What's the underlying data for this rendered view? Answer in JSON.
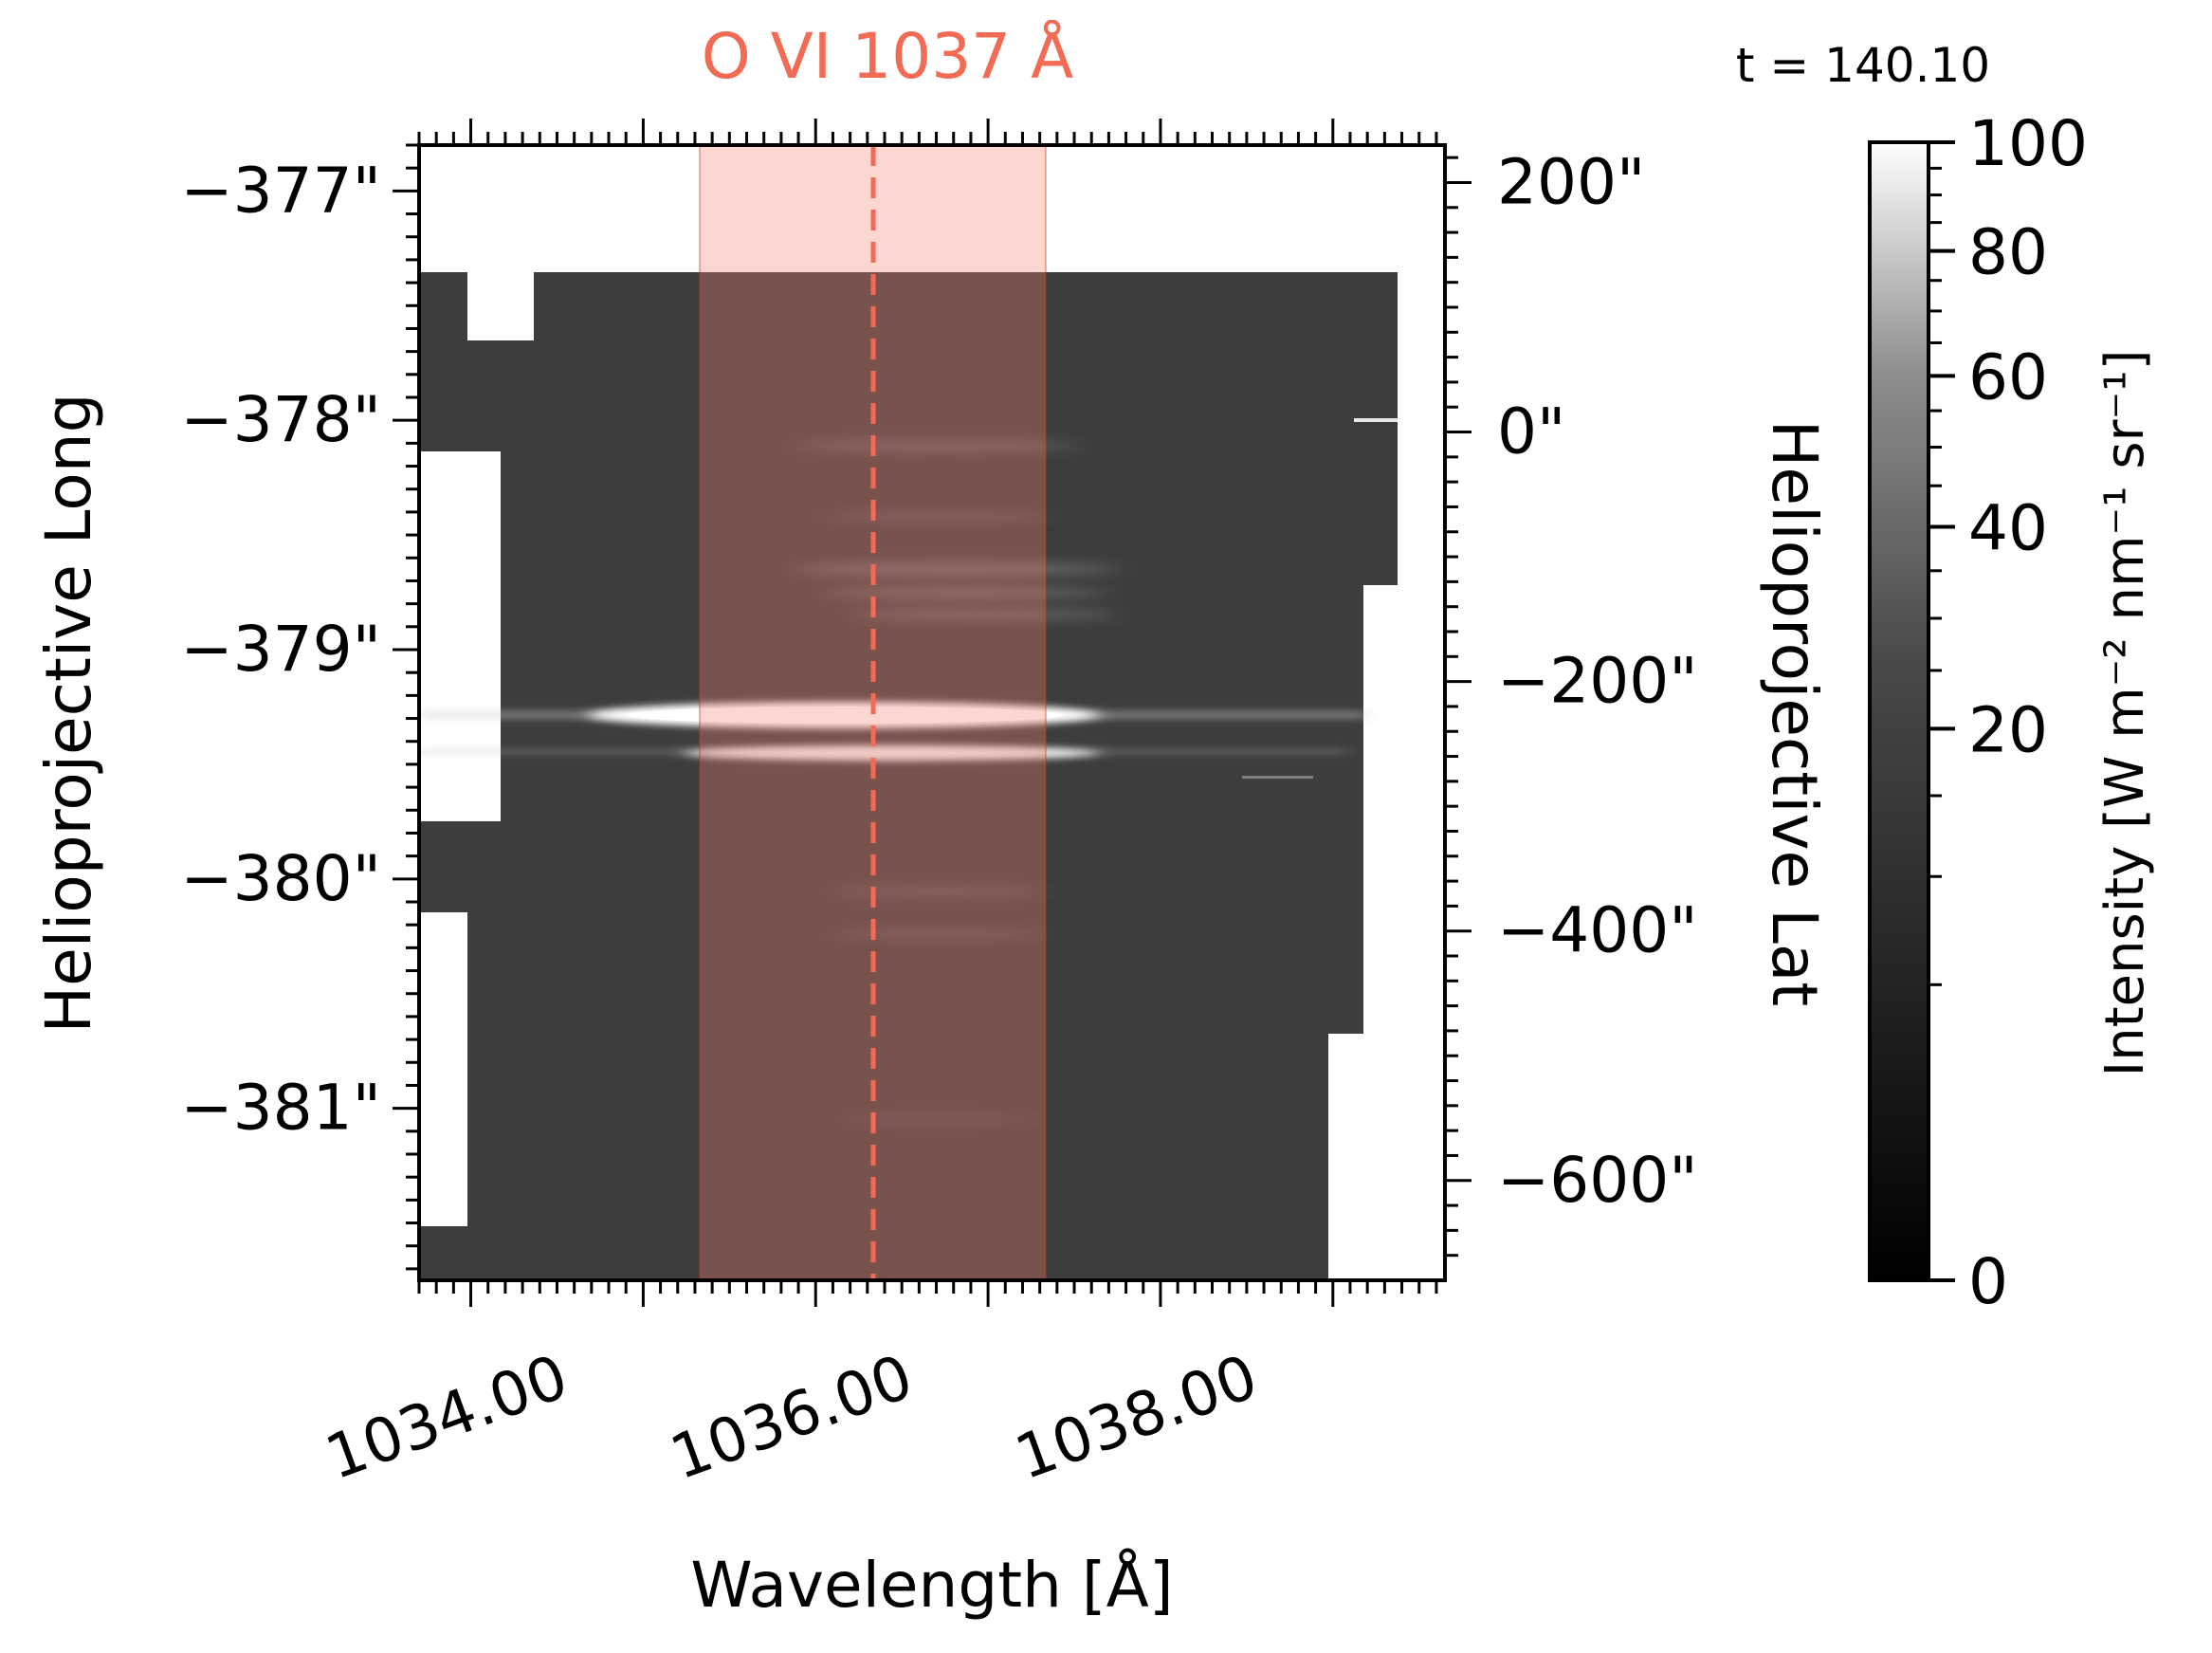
{
  "chart_data": {
    "type": "heatmap",
    "title": "O VI 1037 Å",
    "title_color": "#f26b55",
    "time_label": "t = 140.10",
    "xlabel": "Wavelength [Å]",
    "ylabel_left": "Helioprojective Long",
    "ylabel_right": "Helioprojective Lat",
    "colorbar_label": "Intensity [W m⁻² nm⁻¹ sr⁻¹]",
    "x_ticks": [
      "1034.00",
      "1036.00",
      "1038.00"
    ],
    "x_tick_values": [
      1034,
      1036,
      1038
    ],
    "xlim": [
      1033.7,
      1039.65
    ],
    "y_left_ticks": [
      "−377\"",
      "−378\"",
      "−379\"",
      "−380\"",
      "−381\""
    ],
    "y_left_tick_values": [
      -377,
      -378,
      -379,
      -380,
      -381
    ],
    "y_left_lim": [
      -381.75,
      -376.8
    ],
    "y_right_ticks": [
      "200\"",
      "0\"",
      "−200\"",
      "−400\"",
      "−600\""
    ],
    "y_right_tick_values": [
      200,
      0,
      -200,
      -400,
      -600
    ],
    "y_right_lim": [
      -680,
      230
    ],
    "colorbar_ticks": [
      "0",
      "20",
      "40",
      "60",
      "80",
      "100"
    ],
    "colorbar_tick_values": [
      0,
      20,
      40,
      60,
      80,
      100
    ],
    "colorbar_range": [
      0,
      100
    ],
    "colormap": "gray",
    "line_center": 1036.5,
    "window_range": [
      1035.35,
      1037.35
    ],
    "highlight_color": "#fa8072"
  }
}
